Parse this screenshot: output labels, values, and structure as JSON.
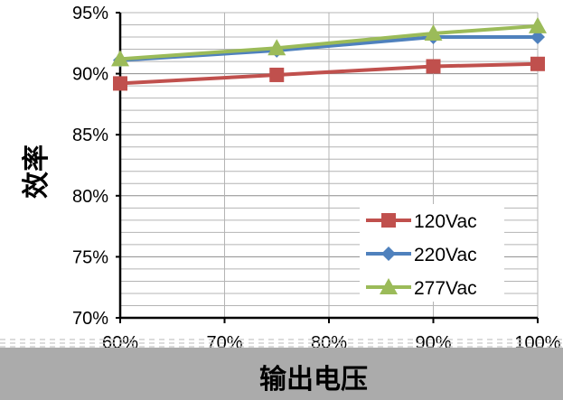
{
  "chart_data": {
    "type": "line",
    "title": "",
    "xlabel": "输出电压",
    "ylabel": "效率",
    "categories": [
      "60%",
      "70%",
      "80%",
      "90%",
      "100%"
    ],
    "x": [
      60,
      75,
      90,
      100
    ],
    "ylim": [
      70,
      95
    ],
    "yticks": [
      "70%",
      "75%",
      "80%",
      "85%",
      "90%",
      "95%"
    ],
    "grid": "horizontal-minor-and-vertical",
    "legend_position": "bottom-right",
    "series": [
      {
        "name": "120Vac",
        "color": "#c0504d",
        "marker": "square",
        "values": [
          89.2,
          89.9,
          90.6,
          90.8
        ]
      },
      {
        "name": "220Vac",
        "color": "#4f81bd",
        "marker": "diamond",
        "values": [
          91.1,
          91.9,
          93.0,
          93.0
        ]
      },
      {
        "name": "277Vac",
        "color": "#9bbb59",
        "marker": "triangle",
        "values": [
          91.2,
          92.1,
          93.3,
          93.9
        ]
      }
    ]
  }
}
